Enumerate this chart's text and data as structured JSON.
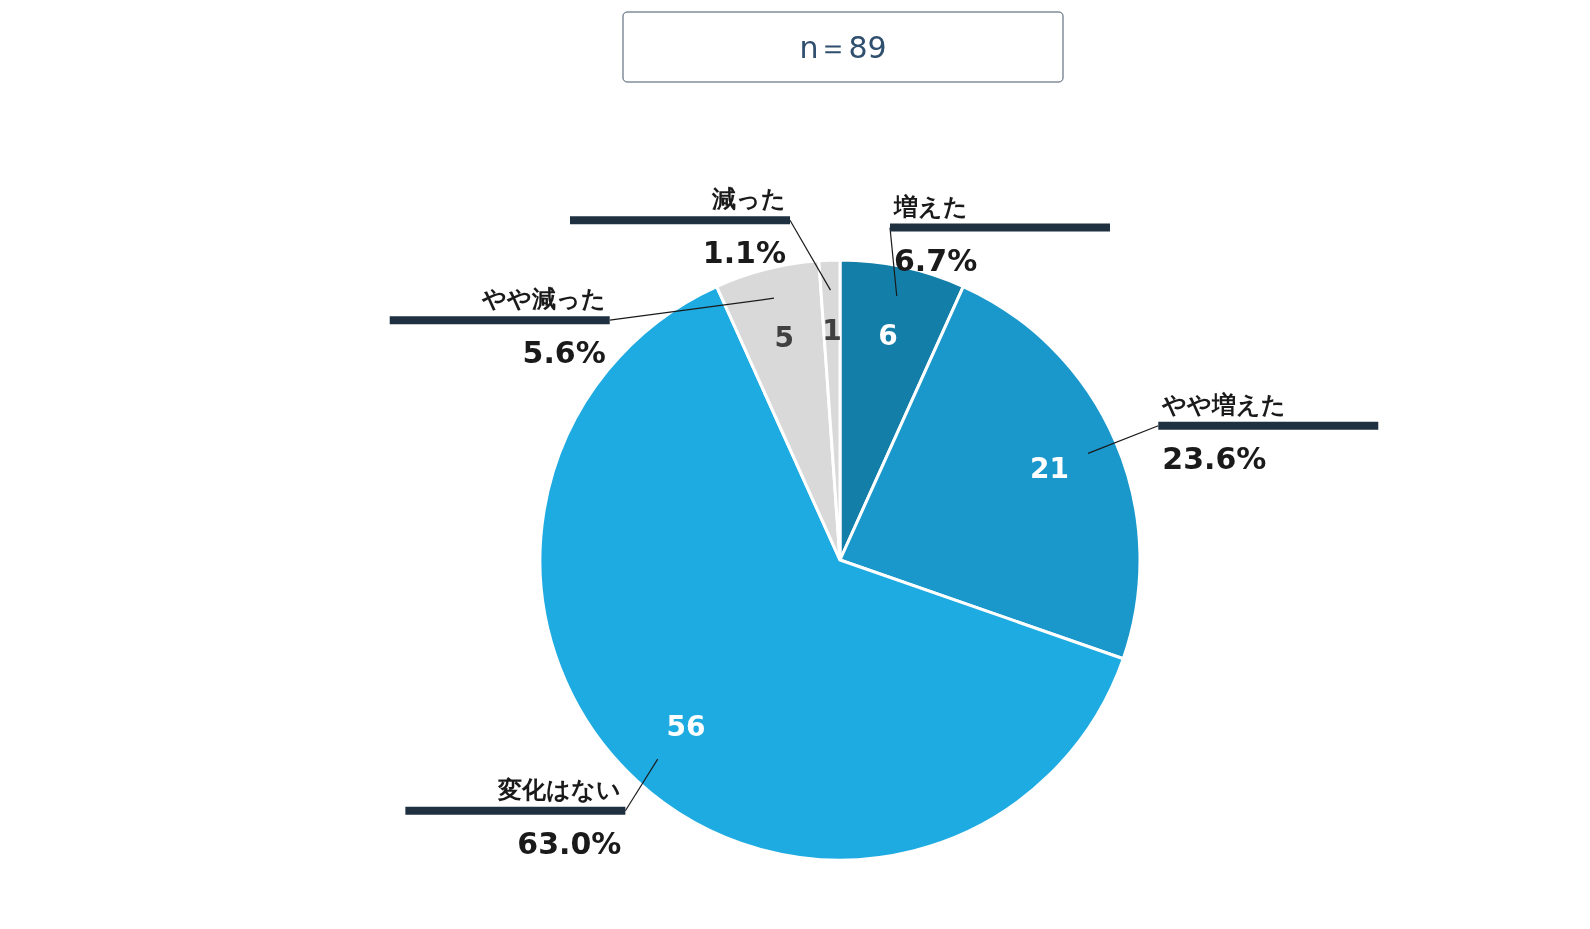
{
  "chart_data": {
    "type": "pie",
    "title": "n＝89",
    "categories": [
      "増えた",
      "やや増えた",
      "変化はない",
      "やや減った",
      "減った"
    ],
    "values": [
      6,
      21,
      56,
      5,
      1
    ],
    "colors": [
      "#137fa9",
      "#1a98cb",
      "#1eabe2",
      "#d9d9d9",
      "#d9d9d9"
    ],
    "data_labels": true,
    "annotations": [
      "6.7%",
      "23.6%",
      "63.0%",
      "5.6%",
      "1.1%"
    ]
  }
}
